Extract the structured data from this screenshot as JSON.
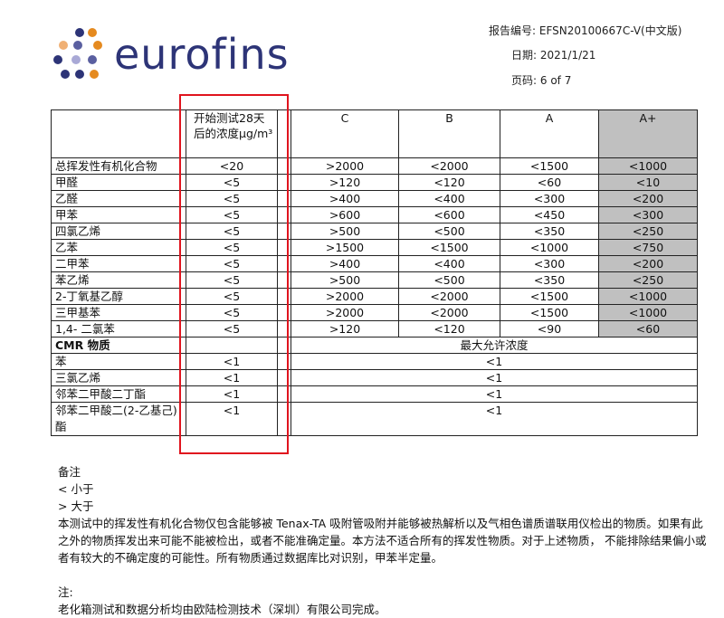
{
  "header": {
    "logo_text": "eurofins",
    "report_no_label": "报告编号:",
    "report_no": "EFSN20100667C-V(中文版)",
    "date_label": "日期:",
    "date": "2021/1/21",
    "page_label": "页码:",
    "page": "6 of 7"
  },
  "table": {
    "columns": [
      "开始测试28天后的浓度μg/m³",
      "C",
      "B",
      "A",
      "A+"
    ],
    "rows": [
      [
        "总挥发性有机化合物",
        "<20",
        ">2000",
        "<2000",
        "<1500",
        "<1000"
      ],
      [
        "甲醛",
        "<5",
        ">120",
        "<120",
        "<60",
        "<10"
      ],
      [
        "乙醛",
        "<5",
        ">400",
        "<400",
        "<300",
        "<200"
      ],
      [
        "甲苯",
        "<5",
        ">600",
        "<600",
        "<450",
        "<300"
      ],
      [
        "四氯乙烯",
        "<5",
        ">500",
        "<500",
        "<350",
        "<250"
      ],
      [
        "乙苯",
        "<5",
        ">1500",
        "<1500",
        "<1000",
        "<750"
      ],
      [
        "二甲苯",
        "<5",
        ">400",
        "<400",
        "<300",
        "<200"
      ],
      [
        "苯乙烯",
        "<5",
        ">500",
        "<500",
        "<350",
        "<250"
      ],
      [
        "2-丁氧基乙醇",
        "<5",
        ">2000",
        "<2000",
        "<1500",
        "<1000"
      ],
      [
        "三甲基苯",
        "<5",
        ">2000",
        "<2000",
        "<1500",
        "<1000"
      ],
      [
        "1,4- 二氯苯",
        "<5",
        ">120",
        "<120",
        "<90",
        "<60"
      ]
    ],
    "cmr_header": "CMR 物质",
    "cmr_limit_header": "最大允许浓度",
    "cmr_rows": [
      [
        "苯",
        "<1",
        "<1"
      ],
      [
        "三氯乙烯",
        "<1",
        "<1"
      ],
      [
        "邻苯二甲酸二丁酯",
        "<1",
        "<1"
      ],
      [
        "邻苯二甲酸二(2-乙基己)酯",
        "<1",
        "<1"
      ]
    ]
  },
  "notes": {
    "title": "备注",
    "lt": "<  小于",
    "gt": ">  大于",
    "body": "本测试中的挥发性有机化合物仅包含能够被 Tenax-TA 吸附管吸附并能够被热解析以及气相色谱质谱联用仪检出的物质。如果有此之外的物质挥发出来可能不能被检出，或者不能准确定量。本方法不适合所有的挥发性物质。对于上述物质， 不能排除结果偏小或者有较大的不确定度的可能性。所有物质通过数据库比对识别，甲苯半定量。",
    "note_title": "注:",
    "note_body": "老化箱测试和数据分析均由欧陆检测技术（深圳）有限公司完成。"
  },
  "colors": {
    "brand": "#2d3477",
    "orange": "#e58a1f",
    "highlight": "#e0141e",
    "aplus": "#c0c0c0"
  }
}
